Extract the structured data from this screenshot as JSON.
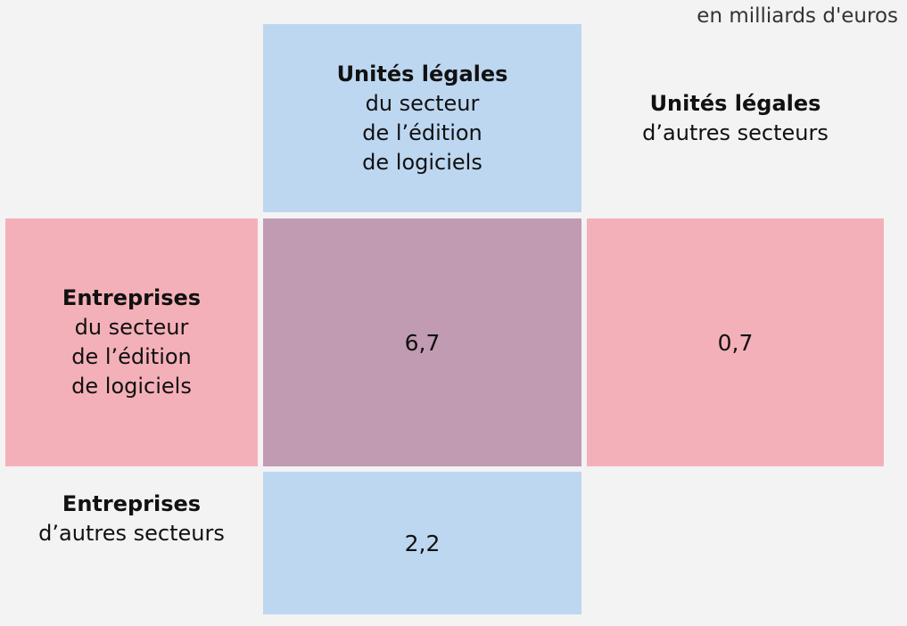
{
  "unit_note": "en milliards d'euros",
  "columns": [
    {
      "title": "Unités légales",
      "subtitle_lines": [
        "du secteur",
        "de l’édition",
        "de logiciels"
      ]
    },
    {
      "title": "Unités légales",
      "subtitle_lines": [
        "d’autres secteurs"
      ]
    }
  ],
  "rows": [
    {
      "title": "Entreprises",
      "subtitle_lines": [
        "du secteur",
        "de l’édition",
        "de logiciels"
      ]
    },
    {
      "title": "Entreprises",
      "subtitle_lines": [
        "d’autres secteurs"
      ]
    }
  ],
  "cells": {
    "r1c1": "6,7",
    "r1c2": "0,7",
    "r2c1": "2,2"
  },
  "colors": {
    "background": "#f3f3f3",
    "blue": "#bdd7f1",
    "pink": "#f4b0b9",
    "overlap": "#c19bb2"
  }
}
